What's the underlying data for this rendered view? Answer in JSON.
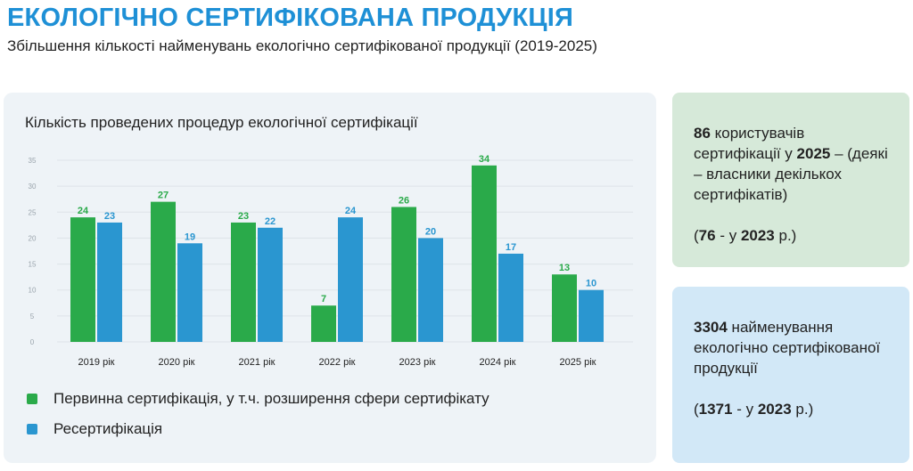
{
  "header": {
    "title": "ЕКОЛОГІЧНО СЕРТИФІКОВАНА ПРОДУКЦІЯ",
    "subtitle": "Збільшення кількості найменувань екологічно сертифікованої продукції (2019-2025)"
  },
  "chart_data": {
    "type": "bar",
    "title": "Кількість проведених процедур екологічної сертифікації",
    "categories": [
      "2019 рік",
      "2020 рік",
      "2021 рік",
      "2022 рік",
      "2023 рік",
      "2024 рік",
      "2025 рік"
    ],
    "series": [
      {
        "name": "Первинна сертифікація, у т.ч. розширення сфери сертифікату",
        "color": "#2aaa4a",
        "values": [
          24,
          27,
          23,
          7,
          26,
          34,
          13
        ]
      },
      {
        "name": "Ресертифікація",
        "color": "#2a96d0",
        "values": [
          23,
          19,
          22,
          24,
          20,
          17,
          10
        ]
      }
    ],
    "yticks": [
      0,
      5,
      10,
      15,
      20,
      25,
      30,
      35
    ],
    "ylim": [
      0,
      35
    ],
    "grid": true,
    "legend_position": "bottom-left",
    "xlabel": "",
    "ylabel": ""
  },
  "info_cards": {
    "users": {
      "count": "86",
      "text_a": " користувачів сертифікації у ",
      "year": "2025",
      "text_b": " – (деякі – власники декількох сертифікатів)",
      "prev_open": "(",
      "prev_count": "76",
      "prev_mid": " - у ",
      "prev_year": "2023",
      "prev_close": " р.)"
    },
    "products": {
      "count": "3304",
      "text_a": " найменування екологічно сертифікованої продукції",
      "prev_open": "(",
      "prev_count": "1371",
      "prev_mid": " - у ",
      "prev_year": "2023",
      "prev_close": " р.)"
    }
  }
}
